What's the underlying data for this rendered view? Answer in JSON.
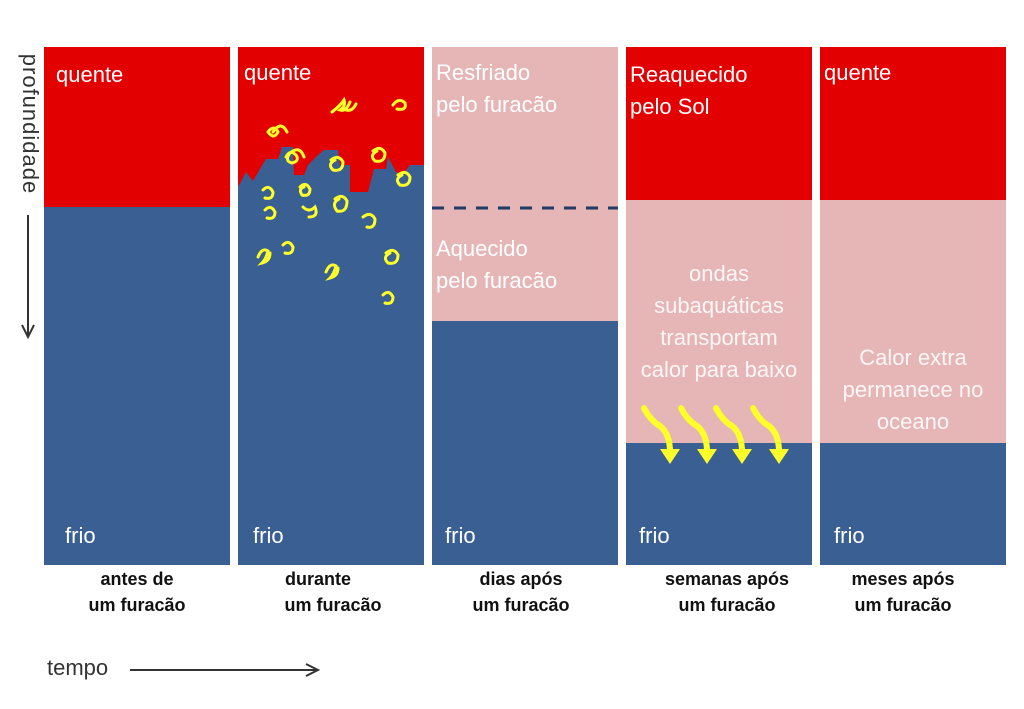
{
  "colors": {
    "hot": "#e30000",
    "pink": "#e6b6b7",
    "cold": "#3a5f92",
    "swirl": "#ffff2a",
    "dashed": "#1f3b66",
    "axis": "#333333"
  },
  "axes": {
    "depth_label": "profundidade",
    "time_label": "tempo"
  },
  "panels": [
    {
      "top": "quente",
      "bottom": "frio",
      "caption1": "antes de",
      "caption2": "um furacão"
    },
    {
      "top": "quente",
      "bottom": "frio",
      "caption1": "durante",
      "caption2": "um furacão"
    },
    {
      "top1": "Resfriado",
      "top2": "pelo furacão",
      "middle1": "Aquecido",
      "middle2": "pelo furacão",
      "bottom": "frio",
      "caption1": "dias após",
      "caption2": "um furacão"
    },
    {
      "top1": "Reaquecido",
      "top2": "pelo Sol",
      "middle1": "ondas",
      "middle2": "subaquáticas",
      "middle3": "transportam",
      "middle4": "calor para baixo",
      "bottom": "frio",
      "caption1": "semanas após",
      "caption2": "um furacão"
    },
    {
      "top": "quente",
      "middle1": "Calor extra",
      "middle2": "permanece no",
      "middle3": "oceano",
      "bottom": "frio",
      "caption1": "meses após",
      "caption2": "um furacão"
    }
  ]
}
